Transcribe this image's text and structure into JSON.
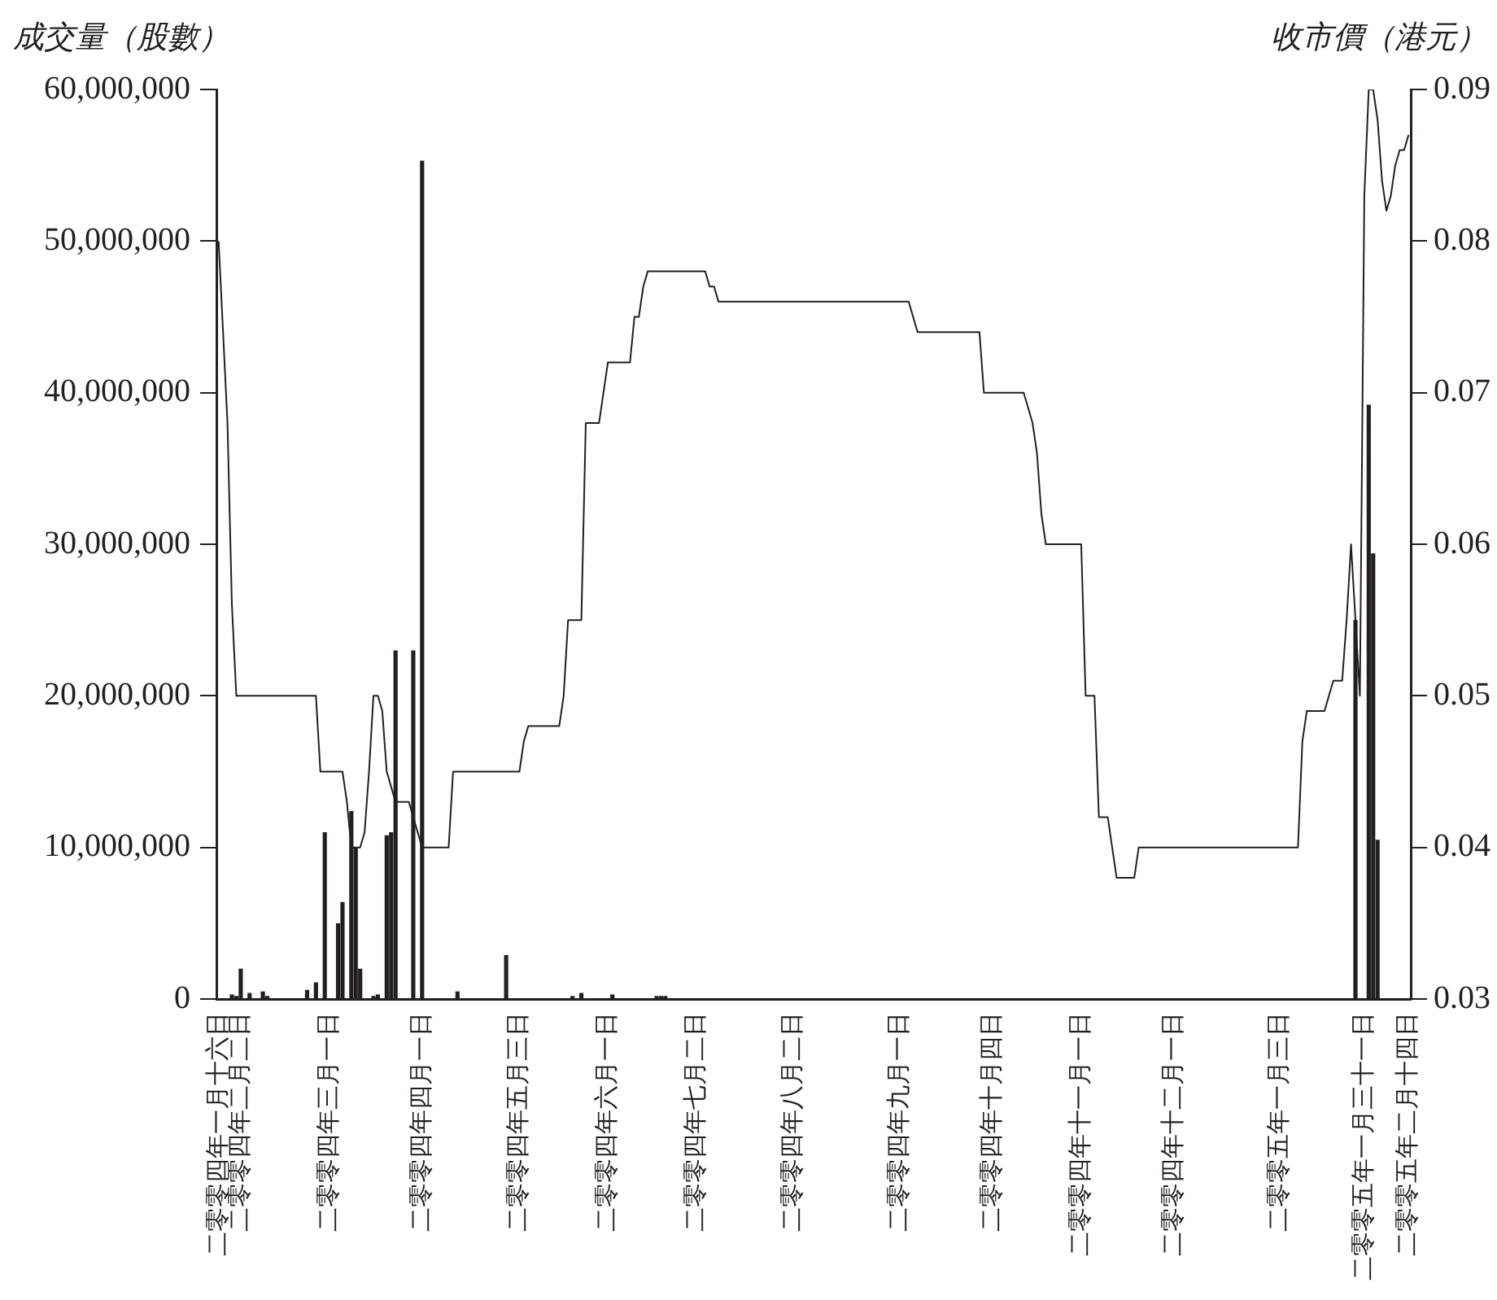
{
  "chart_data": {
    "type": "bar",
    "ylabel": "成交量（股數）",
    "y2label": "收市價（港元）",
    "marker": "none",
    "categories": [
      "二零零四年一月十六日",
      null,
      null,
      null,
      null,
      "二零零四年二月二日",
      null,
      null,
      null,
      null,
      null,
      null,
      null,
      null,
      null,
      null,
      null,
      null,
      null,
      null,
      null,
      null,
      null,
      null,
      null,
      "二零零四年三月一日",
      null,
      null,
      null,
      null,
      null,
      null,
      null,
      null,
      null,
      null,
      null,
      null,
      null,
      null,
      null,
      null,
      null,
      null,
      null,
      null,
      "二零零四年四月一日",
      null,
      null,
      null,
      null,
      null,
      null,
      null,
      null,
      null,
      null,
      null,
      null,
      null,
      null,
      null,
      null,
      null,
      null,
      null,
      null,
      null,
      "二零零四年五月三日",
      null,
      null,
      null,
      null,
      null,
      null,
      null,
      null,
      null,
      null,
      null,
      null,
      null,
      null,
      null,
      null,
      null,
      null,
      null,
      "二零零四年六月一日",
      null,
      null,
      null,
      null,
      null,
      null,
      null,
      null,
      null,
      null,
      null,
      null,
      null,
      null,
      null,
      null,
      null,
      null,
      null,
      "二零零四年七月二日",
      null,
      null,
      null,
      null,
      null,
      null,
      null,
      null,
      null,
      null,
      null,
      null,
      null,
      null,
      null,
      null,
      null,
      null,
      null,
      null,
      null,
      "二零零四年八月二日",
      null,
      null,
      null,
      null,
      null,
      null,
      null,
      null,
      null,
      null,
      null,
      null,
      null,
      null,
      null,
      null,
      null,
      null,
      null,
      null,
      null,
      null,
      null,
      "二零零四年九月一日",
      null,
      null,
      null,
      null,
      null,
      null,
      null,
      null,
      null,
      null,
      null,
      null,
      null,
      null,
      null,
      null,
      null,
      null,
      null,
      null,
      "二零零四年十月四日",
      null,
      null,
      null,
      null,
      null,
      null,
      null,
      null,
      null,
      null,
      null,
      null,
      null,
      null,
      null,
      null,
      null,
      null,
      null,
      "二零零四年十一月一日",
      null,
      null,
      null,
      null,
      null,
      null,
      null,
      null,
      null,
      null,
      null,
      null,
      null,
      null,
      null,
      null,
      null,
      null,
      null,
      null,
      "二零零四年十二月一日",
      null,
      null,
      null,
      null,
      null,
      null,
      null,
      null,
      null,
      null,
      null,
      null,
      null,
      null,
      null,
      null,
      null,
      null,
      null,
      null,
      null,
      null,
      null,
      "二零零五年一月三日",
      null,
      null,
      null,
      null,
      null,
      null,
      null,
      null,
      null,
      null,
      null,
      null,
      null,
      null,
      null,
      null,
      null,
      null,
      "二零零五年一月三十一日",
      null,
      null,
      null,
      null,
      null,
      null,
      null,
      null,
      null,
      "二零零五年二月十四日"
    ],
    "series": [
      {
        "color": "#231f20",
        "values": [
          0,
          0,
          0,
          300000,
          200000,
          2000000,
          0,
          400000,
          0,
          0,
          500000,
          200000,
          0,
          0,
          0,
          0,
          0,
          0,
          0,
          0,
          600000,
          0,
          1100000,
          0,
          11000000,
          0,
          0,
          5000000,
          6400000,
          0,
          12400000,
          10000000,
          2000000,
          0,
          0,
          200000,
          300000,
          0,
          10800000,
          11000000,
          23000000,
          0,
          0,
          0,
          23000000,
          0,
          55300000,
          0,
          0,
          0,
          0,
          0,
          0,
          0,
          500000,
          0,
          0,
          0,
          0,
          0,
          0,
          0,
          0,
          0,
          0,
          2900000,
          0,
          0,
          0,
          0,
          0,
          0,
          0,
          0,
          0,
          0,
          0,
          0,
          0,
          0,
          200000,
          0,
          400000,
          0,
          0,
          0,
          0,
          0,
          0,
          300000,
          0,
          0,
          0,
          0,
          0,
          0,
          0,
          0,
          0,
          200000,
          200000,
          200000,
          0,
          0,
          0,
          0,
          0,
          0,
          0,
          0,
          0,
          0,
          0,
          0,
          0,
          0,
          0,
          0,
          0,
          0,
          0,
          0,
          0,
          0,
          0,
          0,
          0,
          0,
          0,
          0,
          0,
          0,
          0,
          0,
          0,
          0,
          0,
          0,
          0,
          0,
          0,
          0,
          0,
          0,
          0,
          0,
          0,
          0,
          0,
          0,
          0,
          0,
          0,
          0,
          0,
          0,
          0,
          0,
          0,
          0,
          0,
          0,
          0,
          0,
          0,
          0,
          0,
          0,
          0,
          0,
          0,
          0,
          0,
          0,
          0,
          0,
          0,
          0,
          0,
          0,
          0,
          0,
          0,
          0,
          0,
          0,
          0,
          0,
          0,
          0,
          0,
          0,
          0,
          0,
          0,
          0,
          0,
          0,
          0,
          0,
          0,
          0,
          0,
          0,
          0,
          0,
          0,
          0,
          0,
          0,
          0,
          0,
          0,
          0,
          0,
          0,
          0,
          0,
          0,
          0,
          0,
          0,
          0,
          0,
          0,
          0,
          0,
          0,
          0,
          0,
          0,
          0,
          0,
          0,
          0,
          0,
          0,
          0,
          0,
          0,
          0,
          0,
          0,
          0,
          0,
          0,
          0,
          0,
          0,
          0,
          0,
          0,
          0,
          0,
          0,
          0,
          0,
          25000000,
          0,
          0,
          39200000,
          29400000,
          10500000,
          0,
          0,
          0,
          0,
          0,
          0,
          0
        ]
      },
      {
        "type": "line",
        "axis": "y2",
        "color": "#231f20",
        "values": [
          0.08,
          0.074,
          0.068,
          0.056,
          0.05,
          0.05,
          0.05,
          0.05,
          0.05,
          0.05,
          0.05,
          0.05,
          0.05,
          0.05,
          0.05,
          0.05,
          0.05,
          0.05,
          0.05,
          0.05,
          0.05,
          0.05,
          0.05,
          0.045,
          0.045,
          0.045,
          0.045,
          0.045,
          0.045,
          0.043,
          0.04,
          0.04,
          0.04,
          0.041,
          0.045,
          0.05,
          0.05,
          0.049,
          0.045,
          0.044,
          0.043,
          0.043,
          0.043,
          0.043,
          0.042,
          0.041,
          0.04,
          0.04,
          0.04,
          0.04,
          0.04,
          0.04,
          0.04,
          0.045,
          0.045,
          0.045,
          0.045,
          0.045,
          0.045,
          0.045,
          0.045,
          0.045,
          0.045,
          0.045,
          0.045,
          0.045,
          0.045,
          0.045,
          0.045,
          0.047,
          0.048,
          0.048,
          0.048,
          0.048,
          0.048,
          0.048,
          0.048,
          0.048,
          0.05,
          0.055,
          0.055,
          0.055,
          0.055,
          0.068,
          0.068,
          0.068,
          0.068,
          0.07,
          0.072,
          0.072,
          0.072,
          0.072,
          0.072,
          0.072,
          0.075,
          0.075,
          0.077,
          0.078,
          0.078,
          0.078,
          0.078,
          0.078,
          0.078,
          0.078,
          0.078,
          0.078,
          0.078,
          0.078,
          0.078,
          0.078,
          0.078,
          0.077,
          0.077,
          0.076,
          0.076,
          0.076,
          0.076,
          0.076,
          0.076,
          0.076,
          0.076,
          0.076,
          0.076,
          0.076,
          0.076,
          0.076,
          0.076,
          0.076,
          0.076,
          0.076,
          0.076,
          0.076,
          0.076,
          0.076,
          0.076,
          0.076,
          0.076,
          0.076,
          0.076,
          0.076,
          0.076,
          0.076,
          0.076,
          0.076,
          0.076,
          0.076,
          0.076,
          0.076,
          0.076,
          0.076,
          0.076,
          0.076,
          0.076,
          0.076,
          0.076,
          0.076,
          0.076,
          0.075,
          0.074,
          0.074,
          0.074,
          0.074,
          0.074,
          0.074,
          0.074,
          0.074,
          0.074,
          0.074,
          0.074,
          0.074,
          0.074,
          0.074,
          0.074,
          0.07,
          0.07,
          0.07,
          0.07,
          0.07,
          0.07,
          0.07,
          0.07,
          0.07,
          0.07,
          0.069,
          0.068,
          0.066,
          0.062,
          0.06,
          0.06,
          0.06,
          0.06,
          0.06,
          0.06,
          0.06,
          0.06,
          0.06,
          0.05,
          0.05,
          0.05,
          0.042,
          0.042,
          0.042,
          0.04,
          0.038,
          0.038,
          0.038,
          0.038,
          0.038,
          0.04,
          0.04,
          0.04,
          0.04,
          0.04,
          0.04,
          0.04,
          0.04,
          0.04,
          0.04,
          0.04,
          0.04,
          0.04,
          0.04,
          0.04,
          0.04,
          0.04,
          0.04,
          0.04,
          0.04,
          0.04,
          0.04,
          0.04,
          0.04,
          0.04,
          0.04,
          0.04,
          0.04,
          0.04,
          0.04,
          0.04,
          0.04,
          0.04,
          0.04,
          0.04,
          0.04,
          0.04,
          0.047,
          0.049,
          0.049,
          0.049,
          0.049,
          0.049,
          0.05,
          0.051,
          0.051,
          0.051,
          0.055,
          0.06,
          0.055,
          0.05,
          0.083,
          0.09,
          0.09,
          0.088,
          0.084,
          0.082,
          0.083,
          0.085,
          0.086,
          0.086,
          0.087
        ]
      }
    ],
    "ylim": [
      0,
      60000000
    ],
    "yticks": [
      0,
      {
        "value": 10000000,
        "label": "10,000,000"
      },
      {
        "value": 20000000,
        "label": "20,000,000"
      },
      {
        "value": 30000000,
        "label": "30,000,000"
      },
      {
        "value": 40000000,
        "label": "40,000,000"
      },
      {
        "value": 50000000,
        "label": "50,000,000"
      },
      {
        "value": 60000000,
        "label": "60,000,000"
      }
    ],
    "y2lim": [
      0.03,
      0.09
    ],
    "y2ticks": [
      0.03,
      0.04,
      0.05,
      0.06,
      0.07,
      0.08,
      0.09
    ]
  }
}
